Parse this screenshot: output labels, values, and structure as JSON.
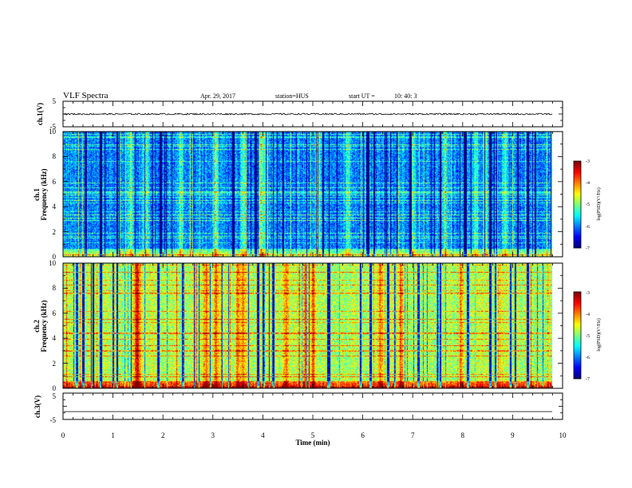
{
  "header": {
    "title": "VLF Spectra",
    "date": "Apr. 29, 2017",
    "station": "station=HUS",
    "start_label": "start  UT  =",
    "start_time": "10: 40: 3"
  },
  "chart_data": {
    "type": "spectrogram",
    "x_axis": {
      "label": "Time  (min)",
      "range": [
        0,
        10
      ],
      "ticks": [
        "0",
        "1",
        "2",
        "3",
        "4",
        "5",
        "6",
        "7",
        "8",
        "9",
        "10"
      ]
    },
    "panels": [
      {
        "id": "ch1-wave",
        "kind": "waveform",
        "ylabel": "ch.1(V)",
        "ylim": [
          -5,
          5
        ],
        "yticks": [
          "5",
          "-5"
        ],
        "baseline": 0,
        "noise_amplitude": 0.3,
        "data_end_min": 9.8
      },
      {
        "id": "ch1-spec",
        "kind": "spectrogram",
        "ylabel": "ch.1",
        "ylabel2": "Frequency  (kHz)",
        "ylim": [
          0,
          10
        ],
        "yticks": [
          "0",
          "2",
          "4",
          "6",
          "8",
          "10"
        ],
        "data_end_min": 9.8,
        "base_level": -6.0,
        "colorbar": {
          "range": [
            -7,
            -3
          ],
          "ticks": [
            "-3",
            "-4",
            "-5",
            "-6",
            "-7"
          ],
          "label": "log(PSD)(V²/Hz)"
        },
        "bright_times_min": [
          1.35,
          1.65,
          2.35,
          3.05,
          3.6,
          3.95,
          4.05,
          5.1,
          5.7,
          7.0,
          7.65,
          8.25,
          8.45,
          8.85
        ],
        "dark_times_min": [
          0.45,
          0.75,
          1.08,
          1.95,
          3.4,
          3.85,
          4.4,
          5.2,
          6.1,
          6.95,
          7.55,
          8.05,
          8.55,
          9.1,
          9.3,
          9.45
        ]
      },
      {
        "id": "ch2-spec",
        "kind": "spectrogram",
        "ylabel": "ch.2",
        "ylabel2": "Frequency  (kHz)",
        "ylim": [
          0,
          10
        ],
        "yticks": [
          "0",
          "2",
          "4",
          "6",
          "8",
          "10"
        ],
        "data_end_min": 9.8,
        "base_level": -4.8,
        "colorbar": {
          "range": [
            -7,
            -3
          ],
          "ticks": [
            "-3",
            "-4",
            "-5",
            "-6",
            "-7"
          ],
          "label": "log(PSD)(V²/Hz)"
        },
        "bright_times_min": [
          1.45,
          1.5,
          2.85,
          3.05,
          3.5,
          3.6,
          4.45,
          4.85,
          5.0,
          6.35,
          6.75,
          7.95
        ],
        "dark_times_min": [
          0.4,
          0.6,
          0.75,
          1.0,
          1.08,
          1.9,
          2.4,
          3.9,
          4.0,
          4.2,
          5.3,
          5.95,
          6.15,
          6.5,
          7.1,
          7.5,
          7.55,
          8.1,
          8.55,
          8.65,
          8.95,
          9.05,
          9.3
        ]
      },
      {
        "id": "ch3-wave",
        "kind": "waveform",
        "ylabel": "ch.3(V)",
        "ylim": [
          -5,
          5
        ],
        "yticks": [
          "5",
          "-5"
        ],
        "baseline": -2,
        "noise_amplitude": 0.0,
        "data_end_min": 9.8
      }
    ]
  }
}
